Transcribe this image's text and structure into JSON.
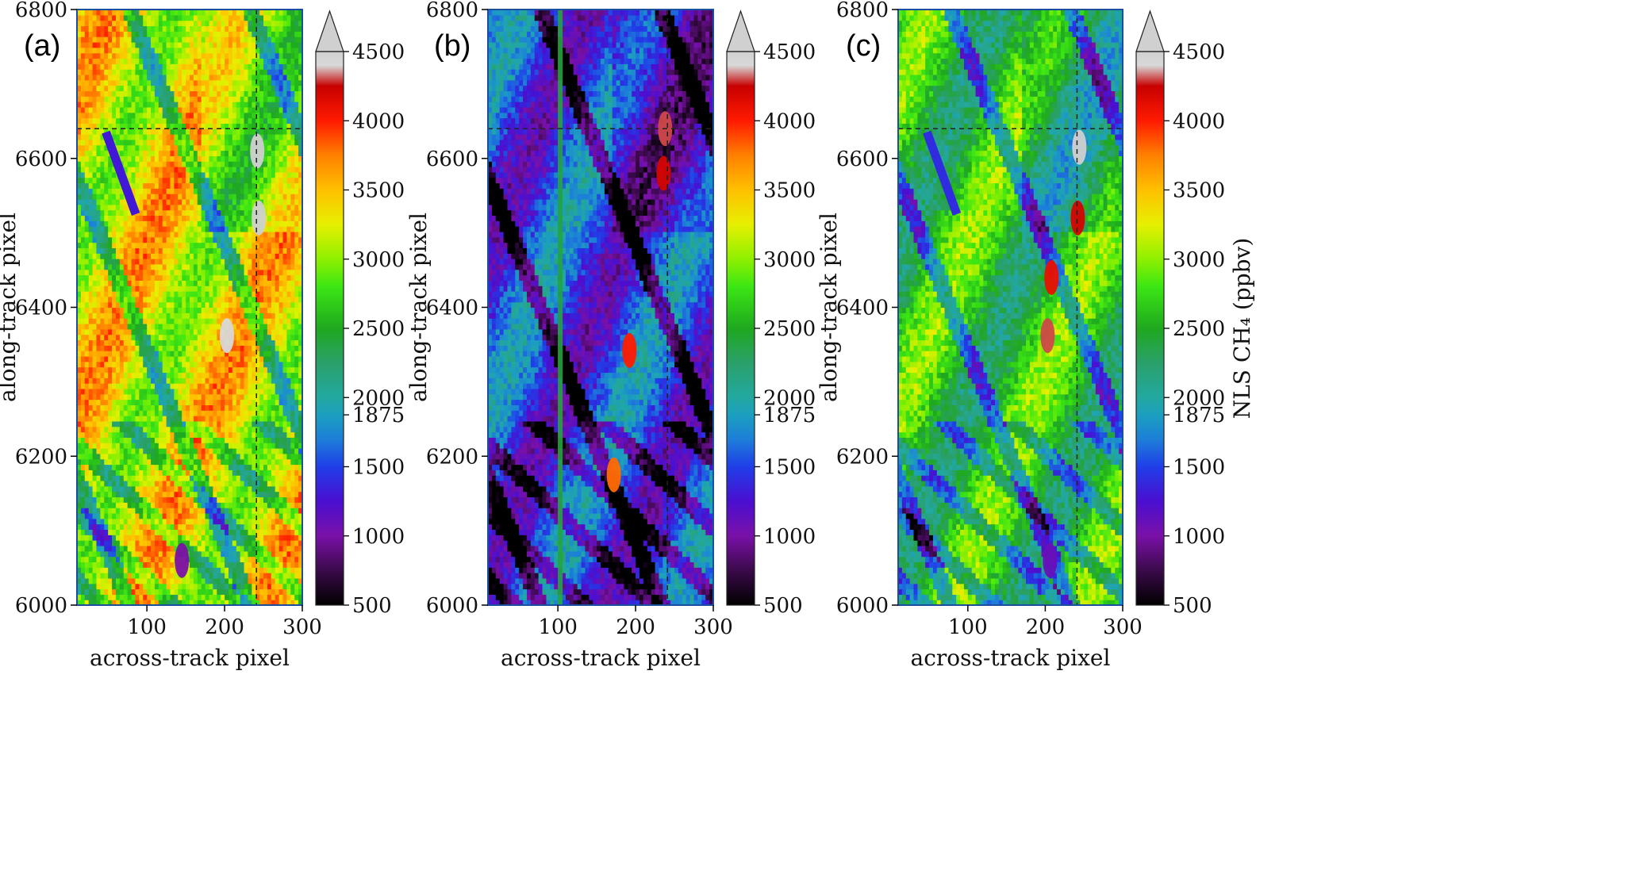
{
  "chart_data": [
    {
      "type": "heatmap",
      "panel_label": "(a)",
      "xlabel": "across-track pixel",
      "ylabel": "along-track pixel",
      "xlim": [
        10,
        300
      ],
      "ylim": [
        6000,
        6800
      ],
      "xticks": [
        100,
        200,
        300
      ],
      "yticks": [
        6000,
        6200,
        6400,
        6600,
        6800
      ],
      "vlim": [
        500,
        4500
      ],
      "dashed_lines": {
        "x": 241,
        "y": 6640
      },
      "field_bias": 1300,
      "features": [
        {
          "kind": "stripe",
          "x": 66,
          "y": 6580,
          "value": 1300
        },
        {
          "kind": "hotspot",
          "x": 203,
          "y": 6362,
          "value": 4400
        },
        {
          "kind": "hotspot",
          "x": 242,
          "y": 6610,
          "value": 4500
        },
        {
          "kind": "hotspot",
          "x": 244,
          "y": 6520,
          "value": 4500
        },
        {
          "kind": "hotspot",
          "x": 145,
          "y": 6060,
          "value": 1000
        }
      ],
      "colorbar": {
        "ticks": [
          500,
          1000,
          1500,
          1875,
          2000,
          2500,
          3000,
          3500,
          4000,
          4500
        ],
        "label": ""
      }
    },
    {
      "type": "heatmap",
      "panel_label": "(b)",
      "xlabel": "across-track pixel",
      "ylabel": "along-track pixel",
      "xlim": [
        10,
        300
      ],
      "ylim": [
        6000,
        6800
      ],
      "xticks": [
        100,
        200,
        300
      ],
      "yticks": [
        6000,
        6200,
        6400,
        6600,
        6800
      ],
      "vlim": [
        500,
        4500
      ],
      "dashed_lines": {
        "x": 241,
        "y": 6640
      },
      "field_bias": -500,
      "features": [
        {
          "kind": "column",
          "x": 103,
          "value": 2400
        },
        {
          "kind": "hotspot",
          "x": 238,
          "y": 6640,
          "value": 4300
        },
        {
          "kind": "hotspot",
          "x": 236,
          "y": 6580,
          "value": 4200
        },
        {
          "kind": "hotspot",
          "x": 192,
          "y": 6342,
          "value": 4000
        },
        {
          "kind": "hotspot",
          "x": 172,
          "y": 6175,
          "value": 3800
        }
      ],
      "colorbar": {
        "ticks": [
          500,
          1000,
          1500,
          1875,
          2000,
          2500,
          3000,
          3500,
          4000,
          4500
        ],
        "label": ""
      }
    },
    {
      "type": "heatmap",
      "panel_label": "(c)",
      "xlabel": "across-track pixel",
      "ylabel": "along-track pixel",
      "xlim": [
        10,
        300
      ],
      "ylim": [
        6000,
        6800
      ],
      "xticks": [
        100,
        200,
        300
      ],
      "yticks": [
        6000,
        6200,
        6400,
        6600,
        6800
      ],
      "vlim": [
        500,
        4500
      ],
      "dashed_lines": {
        "x": 241,
        "y": 6640
      },
      "field_bias": 600,
      "features": [
        {
          "kind": "stripe",
          "x": 66,
          "y": 6580,
          "value": 1400
        },
        {
          "kind": "hotspot",
          "x": 244,
          "y": 6615,
          "value": 4500
        },
        {
          "kind": "hotspot",
          "x": 242,
          "y": 6520,
          "value": 4200
        },
        {
          "kind": "hotspot",
          "x": 208,
          "y": 6440,
          "value": 4100
        },
        {
          "kind": "hotspot",
          "x": 203,
          "y": 6362,
          "value": 4300
        },
        {
          "kind": "hotspot",
          "x": 206,
          "y": 6060,
          "value": 1100
        }
      ],
      "colorbar": {
        "ticks": [
          500,
          1000,
          1500,
          1875,
          2000,
          2500,
          3000,
          3500,
          4000,
          4500
        ],
        "label": "NLS CH₄ (ppbv)"
      }
    }
  ],
  "colormap": [
    {
      "v": 500,
      "c": "#000000"
    },
    {
      "v": 750,
      "c": "#3a0a4a"
    },
    {
      "v": 1000,
      "c": "#7a10a8"
    },
    {
      "v": 1250,
      "c": "#4a0fd0"
    },
    {
      "v": 1500,
      "c": "#1f3ee8"
    },
    {
      "v": 1700,
      "c": "#1d7fd8"
    },
    {
      "v": 1875,
      "c": "#1c9fbf"
    },
    {
      "v": 2000,
      "c": "#22a8a0"
    },
    {
      "v": 2250,
      "c": "#2aa06a"
    },
    {
      "v": 2500,
      "c": "#1fa81f"
    },
    {
      "v": 2800,
      "c": "#3ce614"
    },
    {
      "v": 3000,
      "c": "#8ef000"
    },
    {
      "v": 3250,
      "c": "#e6f000"
    },
    {
      "v": 3500,
      "c": "#ffc000"
    },
    {
      "v": 3750,
      "c": "#ff8000"
    },
    {
      "v": 4000,
      "c": "#ff1a00"
    },
    {
      "v": 4250,
      "c": "#c80000"
    },
    {
      "v": 4400,
      "c": "#d8d8d8"
    },
    {
      "v": 4500,
      "c": "#d0d0d0"
    }
  ]
}
